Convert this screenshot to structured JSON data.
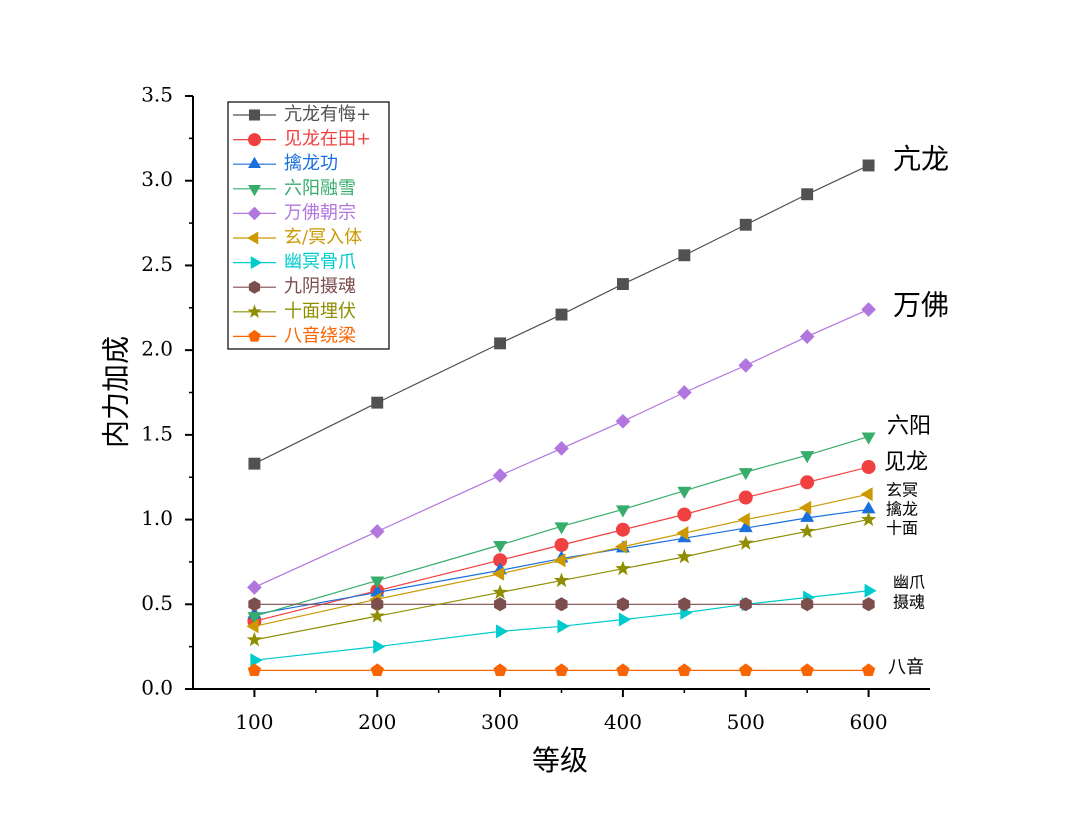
{
  "chart_data": {
    "type": "line",
    "xlabel": "等级",
    "ylabel": "内力加成",
    "xlim": [
      50,
      650
    ],
    "ylim": [
      0,
      3.5
    ],
    "xticks": [
      100,
      200,
      300,
      400,
      500,
      600
    ],
    "yticks": [
      "0.0",
      "0.5",
      "1.0",
      "1.5",
      "2.0",
      "2.5",
      "3.0",
      "3.5"
    ],
    "grid": false,
    "legend_position": "top-left",
    "x": [
      100,
      200,
      300,
      350,
      400,
      450,
      500,
      550,
      600
    ],
    "series": [
      {
        "name": "亢龙有悔+",
        "color": "#515151",
        "marker": "square",
        "values": [
          1.33,
          1.69,
          2.04,
          2.21,
          2.39,
          2.56,
          2.74,
          2.92,
          3.09
        ]
      },
      {
        "name": "见龙在田+",
        "color": "#F14040",
        "marker": "circle",
        "values": [
          0.4,
          0.58,
          0.76,
          0.85,
          0.94,
          1.03,
          1.13,
          1.22,
          1.31
        ]
      },
      {
        "name": "擒龙功",
        "color": "#1A6FDF",
        "marker": "triangle-up",
        "values": [
          0.44,
          0.57,
          0.7,
          0.77,
          0.83,
          0.89,
          0.95,
          1.01,
          1.06
        ]
      },
      {
        "name": "六阳融雪",
        "color": "#37AD6B",
        "marker": "triangle-down",
        "values": [
          0.43,
          0.64,
          0.85,
          0.96,
          1.06,
          1.17,
          1.28,
          1.38,
          1.49
        ]
      },
      {
        "name": "万佛朝宗",
        "color": "#B177DE",
        "marker": "diamond",
        "values": [
          0.6,
          0.93,
          1.26,
          1.42,
          1.58,
          1.75,
          1.91,
          2.08,
          2.24
        ]
      },
      {
        "name": "玄/冥入体",
        "color": "#CC9900",
        "marker": "triangle-left",
        "values": [
          0.37,
          0.53,
          0.68,
          0.76,
          0.84,
          0.92,
          1.0,
          1.07,
          1.15
        ]
      },
      {
        "name": "幽冥骨爪",
        "color": "#00CBCC",
        "marker": "triangle-right",
        "values": [
          0.17,
          0.25,
          0.34,
          0.37,
          0.41,
          0.45,
          0.5,
          0.54,
          0.58
        ]
      },
      {
        "name": "九阴摄魂",
        "color": "#7D4E4E",
        "marker": "hexagon",
        "values": [
          0.5,
          0.5,
          0.5,
          0.5,
          0.5,
          0.5,
          0.5,
          0.5,
          0.5
        ]
      },
      {
        "name": "十面埋伏",
        "color": "#8E8E00",
        "marker": "star",
        "values": [
          0.29,
          0.43,
          0.57,
          0.64,
          0.71,
          0.78,
          0.86,
          0.93,
          1.0
        ]
      },
      {
        "name": "八音绕梁",
        "color": "#FB6501",
        "marker": "pentagon",
        "values": [
          0.11,
          0.11,
          0.11,
          0.11,
          0.11,
          0.11,
          0.11,
          0.11,
          0.11
        ]
      }
    ],
    "annotations": [
      "亢龙",
      "万佛",
      "六阳",
      "见龙",
      "玄冥",
      "擒龙",
      "十面",
      "幽爪",
      "摄魂",
      "八音"
    ]
  }
}
